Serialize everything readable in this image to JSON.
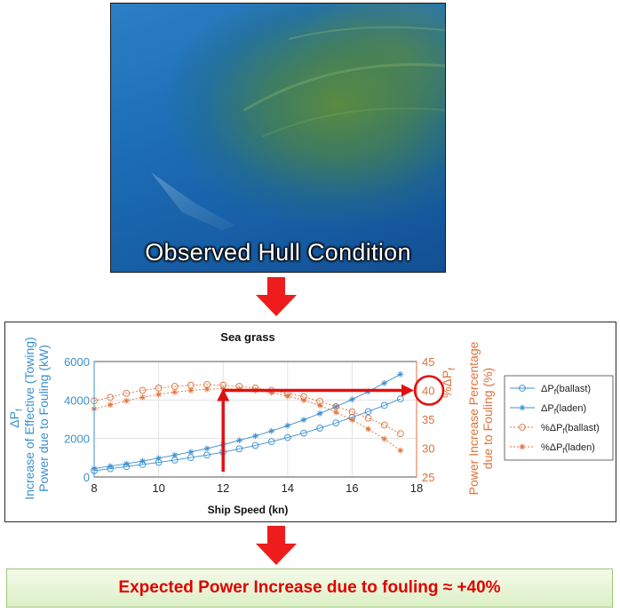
{
  "photo": {
    "caption": "Observed Hull Condition"
  },
  "colors": {
    "blue": "#3a8fd0",
    "orange": "#e0713a",
    "red": "#e01010"
  },
  "chart_data": {
    "type": "line",
    "title": "Sea grass",
    "xlabel": "Ship Speed (kn)",
    "xlim": [
      8,
      18
    ],
    "xticks": [
      "8",
      "10",
      "12",
      "14",
      "16",
      "18"
    ],
    "ylabel_left_line1": "ΔP",
    "ylabel_left_line1_sub": "f",
    "ylabel_left_line2": "Increase of Effective (Towing)",
    "ylabel_left_line3": "Power due to Fouling (kW)",
    "ylim_left": [
      0,
      6000
    ],
    "yticks_left": [
      "0",
      "2000",
      "4000",
      "6000"
    ],
    "ylabel_right_line1": "%ΔP",
    "ylabel_right_line1_sub": "f",
    "ylabel_right_line2": "Power Increase Percentage",
    "ylabel_right_line3": "due to Fouling (%)",
    "ylim_right": [
      25,
      45
    ],
    "yticks_right": [
      "25",
      "30",
      "35",
      "40",
      "45"
    ],
    "grid": true,
    "legend_placement": "right",
    "x": [
      8,
      8.5,
      9,
      9.5,
      10,
      10.5,
      11,
      11.5,
      12,
      12.5,
      13,
      13.5,
      14,
      14.5,
      15,
      15.5,
      16,
      16.5,
      17,
      17.5
    ],
    "series": [
      {
        "name": "ΔP",
        "sub": "f",
        "suffix": "(ballast)",
        "axis": "left",
        "marker": "circle",
        "color": "#3a8fd0",
        "values": [
          330,
          430,
          540,
          650,
          760,
          880,
          1010,
          1140,
          1290,
          1460,
          1640,
          1840,
          2050,
          2280,
          2540,
          2810,
          3100,
          3400,
          3720,
          4060
        ]
      },
      {
        "name": "ΔP",
        "sub": "f",
        "suffix": "(laden)",
        "axis": "left",
        "marker": "star",
        "color": "#3a8fd0",
        "values": [
          440,
          560,
          690,
          830,
          980,
          1140,
          1300,
          1480,
          1680,
          1900,
          2130,
          2390,
          2670,
          2970,
          3300,
          3650,
          4030,
          4440,
          4880,
          5340
        ]
      },
      {
        "name": "%ΔP",
        "sub": "f",
        "suffix": "(ballast)",
        "axis": "right",
        "marker": "circle",
        "color": "#e0713a",
        "values": [
          38.2,
          38.8,
          39.5,
          40.0,
          40.4,
          40.7,
          40.9,
          41.0,
          40.9,
          40.7,
          40.4,
          40.0,
          39.5,
          38.9,
          38.1,
          37.2,
          36.3,
          35.2,
          34.0,
          32.5
        ]
      },
      {
        "name": "%ΔP",
        "sub": "f",
        "suffix": "(laden)",
        "axis": "right",
        "marker": "star",
        "color": "#e0713a",
        "values": [
          36.8,
          37.5,
          38.2,
          38.8,
          39.3,
          39.7,
          40.0,
          40.2,
          40.3,
          40.2,
          40.0,
          39.6,
          39.0,
          38.3,
          37.4,
          36.2,
          34.9,
          33.3,
          31.6,
          29.6
        ]
      }
    ],
    "annotation": {
      "from_x": 12,
      "to_right_y": 40,
      "label": "40"
    }
  },
  "result": {
    "text": "Expected Power Increase due to fouling ≈ +40%"
  }
}
